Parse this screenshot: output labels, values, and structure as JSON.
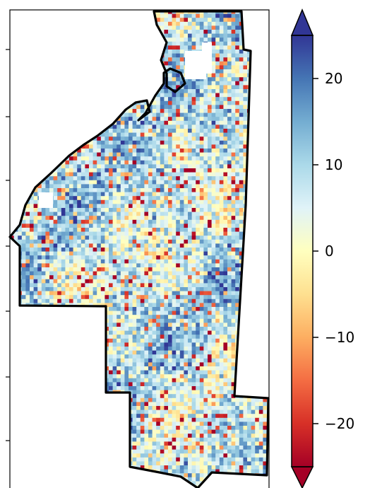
{
  "chart_data": {
    "type": "heatmap",
    "title": "",
    "xlabel": "",
    "ylabel": "",
    "grid": false,
    "colormap": "RdYlBu",
    "colorbar": {
      "position": "right",
      "vmin": -25,
      "vmax": 25,
      "extend": "both",
      "ticks": [
        20,
        10,
        0,
        -10,
        -20
      ],
      "tick_labels": [
        "20",
        "10",
        "0",
        "−10",
        "−20"
      ]
    },
    "value_summary": {
      "predominant_range": [
        5,
        25
      ],
      "scattered_low_values": [
        -25,
        -5
      ],
      "mean_estimate": 8
    },
    "colors": {
      "high": "#313695",
      "mid_high": "#abd9e9",
      "middle": "#ffffbf",
      "mid_low": "#fdae61",
      "low": "#a50026",
      "boundary": "#000000"
    }
  }
}
